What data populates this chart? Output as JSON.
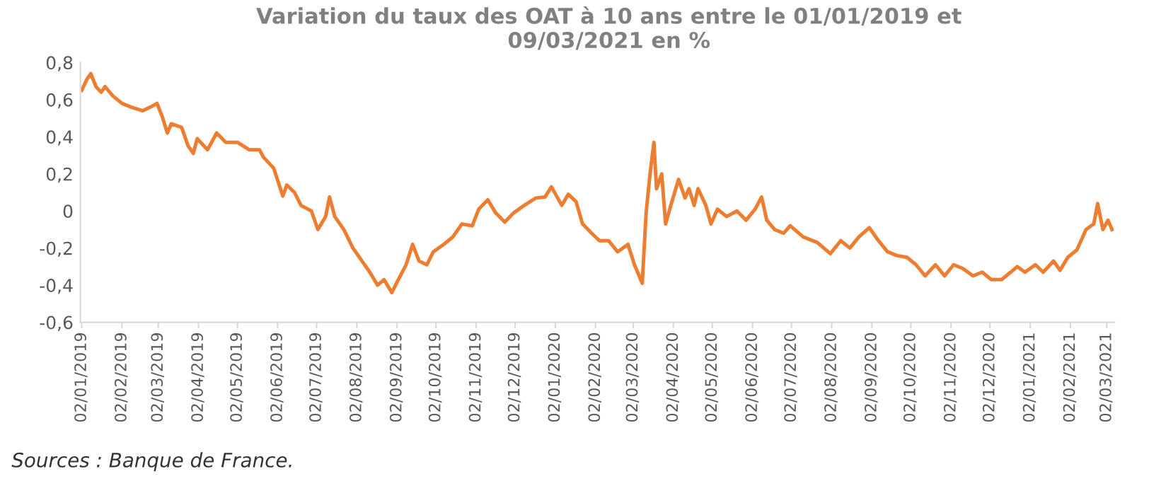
{
  "chart_data": {
    "type": "line",
    "title": "Variation du taux des OAT à 10 ans entre le 01/01/2019 et\n09/03/2021 en %",
    "annotations": [
      "Sources : Banque de France."
    ],
    "x": [
      "2019-01-02",
      "2019-01-06",
      "2019-01-09",
      "2019-01-13",
      "2019-01-17",
      "2019-01-20",
      "2019-01-26",
      "2019-02-02",
      "2019-02-09",
      "2019-02-18",
      "2019-02-24",
      "2019-03-01",
      "2019-03-05",
      "2019-03-09",
      "2019-03-12",
      "2019-03-20",
      "2019-03-25",
      "2019-03-29",
      "2019-04-01",
      "2019-04-09",
      "2019-04-16",
      "2019-04-23",
      "2019-05-02",
      "2019-05-11",
      "2019-05-19",
      "2019-05-22",
      "2019-05-30",
      "2019-06-06",
      "2019-06-09",
      "2019-06-15",
      "2019-06-20",
      "2019-06-28",
      "2019-07-03",
      "2019-07-09",
      "2019-07-12",
      "2019-07-16",
      "2019-07-23",
      "2019-07-30",
      "2019-08-07",
      "2019-08-12",
      "2019-08-18",
      "2019-08-23",
      "2019-08-29",
      "2019-09-03",
      "2019-09-09",
      "2019-09-14",
      "2019-09-19",
      "2019-09-25",
      "2019-09-30",
      "2019-10-08",
      "2019-10-15",
      "2019-10-22",
      "2019-10-30",
      "2019-11-04",
      "2019-11-11",
      "2019-11-17",
      "2019-11-24",
      "2019-12-01",
      "2019-12-09",
      "2019-12-18",
      "2019-12-25",
      "2019-12-30",
      "2020-01-07",
      "2020-01-12",
      "2020-01-18",
      "2020-01-23",
      "2020-01-30",
      "2020-02-05",
      "2020-02-12",
      "2020-02-19",
      "2020-02-27",
      "2020-03-03",
      "2020-03-09",
      "2020-03-12",
      "2020-03-15",
      "2020-03-18",
      "2020-03-20",
      "2020-03-24",
      "2020-03-27",
      "2020-03-31",
      "2020-04-06",
      "2020-04-11",
      "2020-04-14",
      "2020-04-18",
      "2020-04-21",
      "2020-04-27",
      "2020-05-01",
      "2020-05-06",
      "2020-05-13",
      "2020-05-21",
      "2020-05-28",
      "2020-06-04",
      "2020-06-09",
      "2020-06-13",
      "2020-06-19",
      "2020-06-26",
      "2020-07-01",
      "2020-07-11",
      "2020-07-22",
      "2020-08-01",
      "2020-08-09",
      "2020-08-16",
      "2020-08-23",
      "2020-08-31",
      "2020-09-07",
      "2020-09-14",
      "2020-09-21",
      "2020-09-29",
      "2020-10-06",
      "2020-10-13",
      "2020-10-21",
      "2020-10-28",
      "2020-11-04",
      "2020-11-11",
      "2020-11-19",
      "2020-11-26",
      "2020-12-03",
      "2020-12-11",
      "2020-12-18",
      "2020-12-23",
      "2020-12-29",
      "2021-01-06",
      "2021-01-12",
      "2021-01-20",
      "2021-01-25",
      "2021-01-31",
      "2021-02-07",
      "2021-02-14",
      "2021-02-20",
      "2021-02-23",
      "2021-02-27",
      "2021-03-03",
      "2021-03-06"
    ],
    "series": [
      {
        "color": "#ed7d31",
        "values": [
          0.65,
          0.71,
          0.74,
          0.67,
          0.64,
          0.67,
          0.62,
          0.58,
          0.56,
          0.54,
          0.56,
          0.58,
          0.51,
          0.42,
          0.47,
          0.45,
          0.35,
          0.31,
          0.39,
          0.33,
          0.42,
          0.37,
          0.37,
          0.33,
          0.33,
          0.29,
          0.23,
          0.08,
          0.14,
          0.1,
          0.03,
          0.0,
          -0.1,
          -0.03,
          0.075,
          -0.03,
          -0.1,
          -0.2,
          -0.28,
          -0.33,
          -0.4,
          -0.37,
          -0.44,
          -0.37,
          -0.29,
          -0.18,
          -0.27,
          -0.29,
          -0.22,
          -0.18,
          -0.14,
          -0.07,
          -0.08,
          0.01,
          0.06,
          -0.01,
          -0.06,
          -0.01,
          0.03,
          0.07,
          0.075,
          0.13,
          0.03,
          0.09,
          0.05,
          -0.07,
          -0.12,
          -0.16,
          -0.16,
          -0.22,
          -0.18,
          -0.29,
          -0.39,
          -0.01,
          0.2,
          0.37,
          0.12,
          0.2,
          -0.07,
          0.03,
          0.17,
          0.07,
          0.12,
          0.03,
          0.12,
          0.03,
          -0.07,
          0.01,
          -0.03,
          0.0,
          -0.05,
          0.01,
          0.075,
          -0.05,
          -0.1,
          -0.12,
          -0.08,
          -0.14,
          -0.17,
          -0.23,
          -0.16,
          -0.2,
          -0.14,
          -0.09,
          -0.16,
          -0.22,
          -0.24,
          -0.25,
          -0.29,
          -0.35,
          -0.29,
          -0.35,
          -0.29,
          -0.31,
          -0.35,
          -0.33,
          -0.37,
          -0.37,
          -0.33,
          -0.3,
          -0.33,
          -0.29,
          -0.33,
          -0.27,
          -0.32,
          -0.25,
          -0.21,
          -0.1,
          -0.07,
          0.04,
          -0.1,
          -0.05,
          -0.1
        ]
      }
    ],
    "xlim": [
      "2019-01-01",
      "2021-03-08"
    ],
    "xticks": [
      {
        "value": "2019-01-02",
        "label": "02/01/2019"
      },
      {
        "value": "2019-02-02",
        "label": "02/02/2019"
      },
      {
        "value": "2019-03-02",
        "label": "02/03/2019"
      },
      {
        "value": "2019-04-02",
        "label": "02/04/2019"
      },
      {
        "value": "2019-05-02",
        "label": "02/05/2019"
      },
      {
        "value": "2019-06-02",
        "label": "02/06/2019"
      },
      {
        "value": "2019-07-02",
        "label": "02/07/2019"
      },
      {
        "value": "2019-08-02",
        "label": "02/08/2019"
      },
      {
        "value": "2019-09-02",
        "label": "02/09/2019"
      },
      {
        "value": "2019-10-02",
        "label": "02/10/2019"
      },
      {
        "value": "2019-11-02",
        "label": "02/11/2019"
      },
      {
        "value": "2019-12-02",
        "label": "02/12/2019"
      },
      {
        "value": "2020-01-02",
        "label": "02/01/2020"
      },
      {
        "value": "2020-02-02",
        "label": "02/02/2020"
      },
      {
        "value": "2020-03-02",
        "label": "02/03/2020"
      },
      {
        "value": "2020-04-02",
        "label": "02/04/2020"
      },
      {
        "value": "2020-05-02",
        "label": "02/05/2020"
      },
      {
        "value": "2020-06-02",
        "label": "02/06/2020"
      },
      {
        "value": "2020-07-02",
        "label": "02/07/2020"
      },
      {
        "value": "2020-08-02",
        "label": "02/08/2020"
      },
      {
        "value": "2020-09-02",
        "label": "02/09/2020"
      },
      {
        "value": "2020-10-02",
        "label": "02/10/2020"
      },
      {
        "value": "2020-11-02",
        "label": "02/11/2020"
      },
      {
        "value": "2020-12-02",
        "label": "02/12/2020"
      },
      {
        "value": "2021-01-02",
        "label": "02/01/2021"
      },
      {
        "value": "2021-02-02",
        "label": "02/02/2021"
      },
      {
        "value": "2021-03-02",
        "label": "02/03/2021"
      }
    ],
    "ylim": [
      -0.6,
      0.8
    ],
    "yticks": [
      {
        "value": -0.6,
        "label": "-0,6"
      },
      {
        "value": -0.4,
        "label": "-0,4"
      },
      {
        "value": -0.2,
        "label": "-0,2"
      },
      0,
      {
        "value": 0.2,
        "label": "0,2"
      },
      {
        "value": 0.4,
        "label": "0,4"
      },
      {
        "value": 0.6,
        "label": "0,6"
      },
      {
        "value": 0.8,
        "label": "0,8"
      }
    ],
    "grid": false,
    "marker": "none",
    "line_style": "solid"
  }
}
